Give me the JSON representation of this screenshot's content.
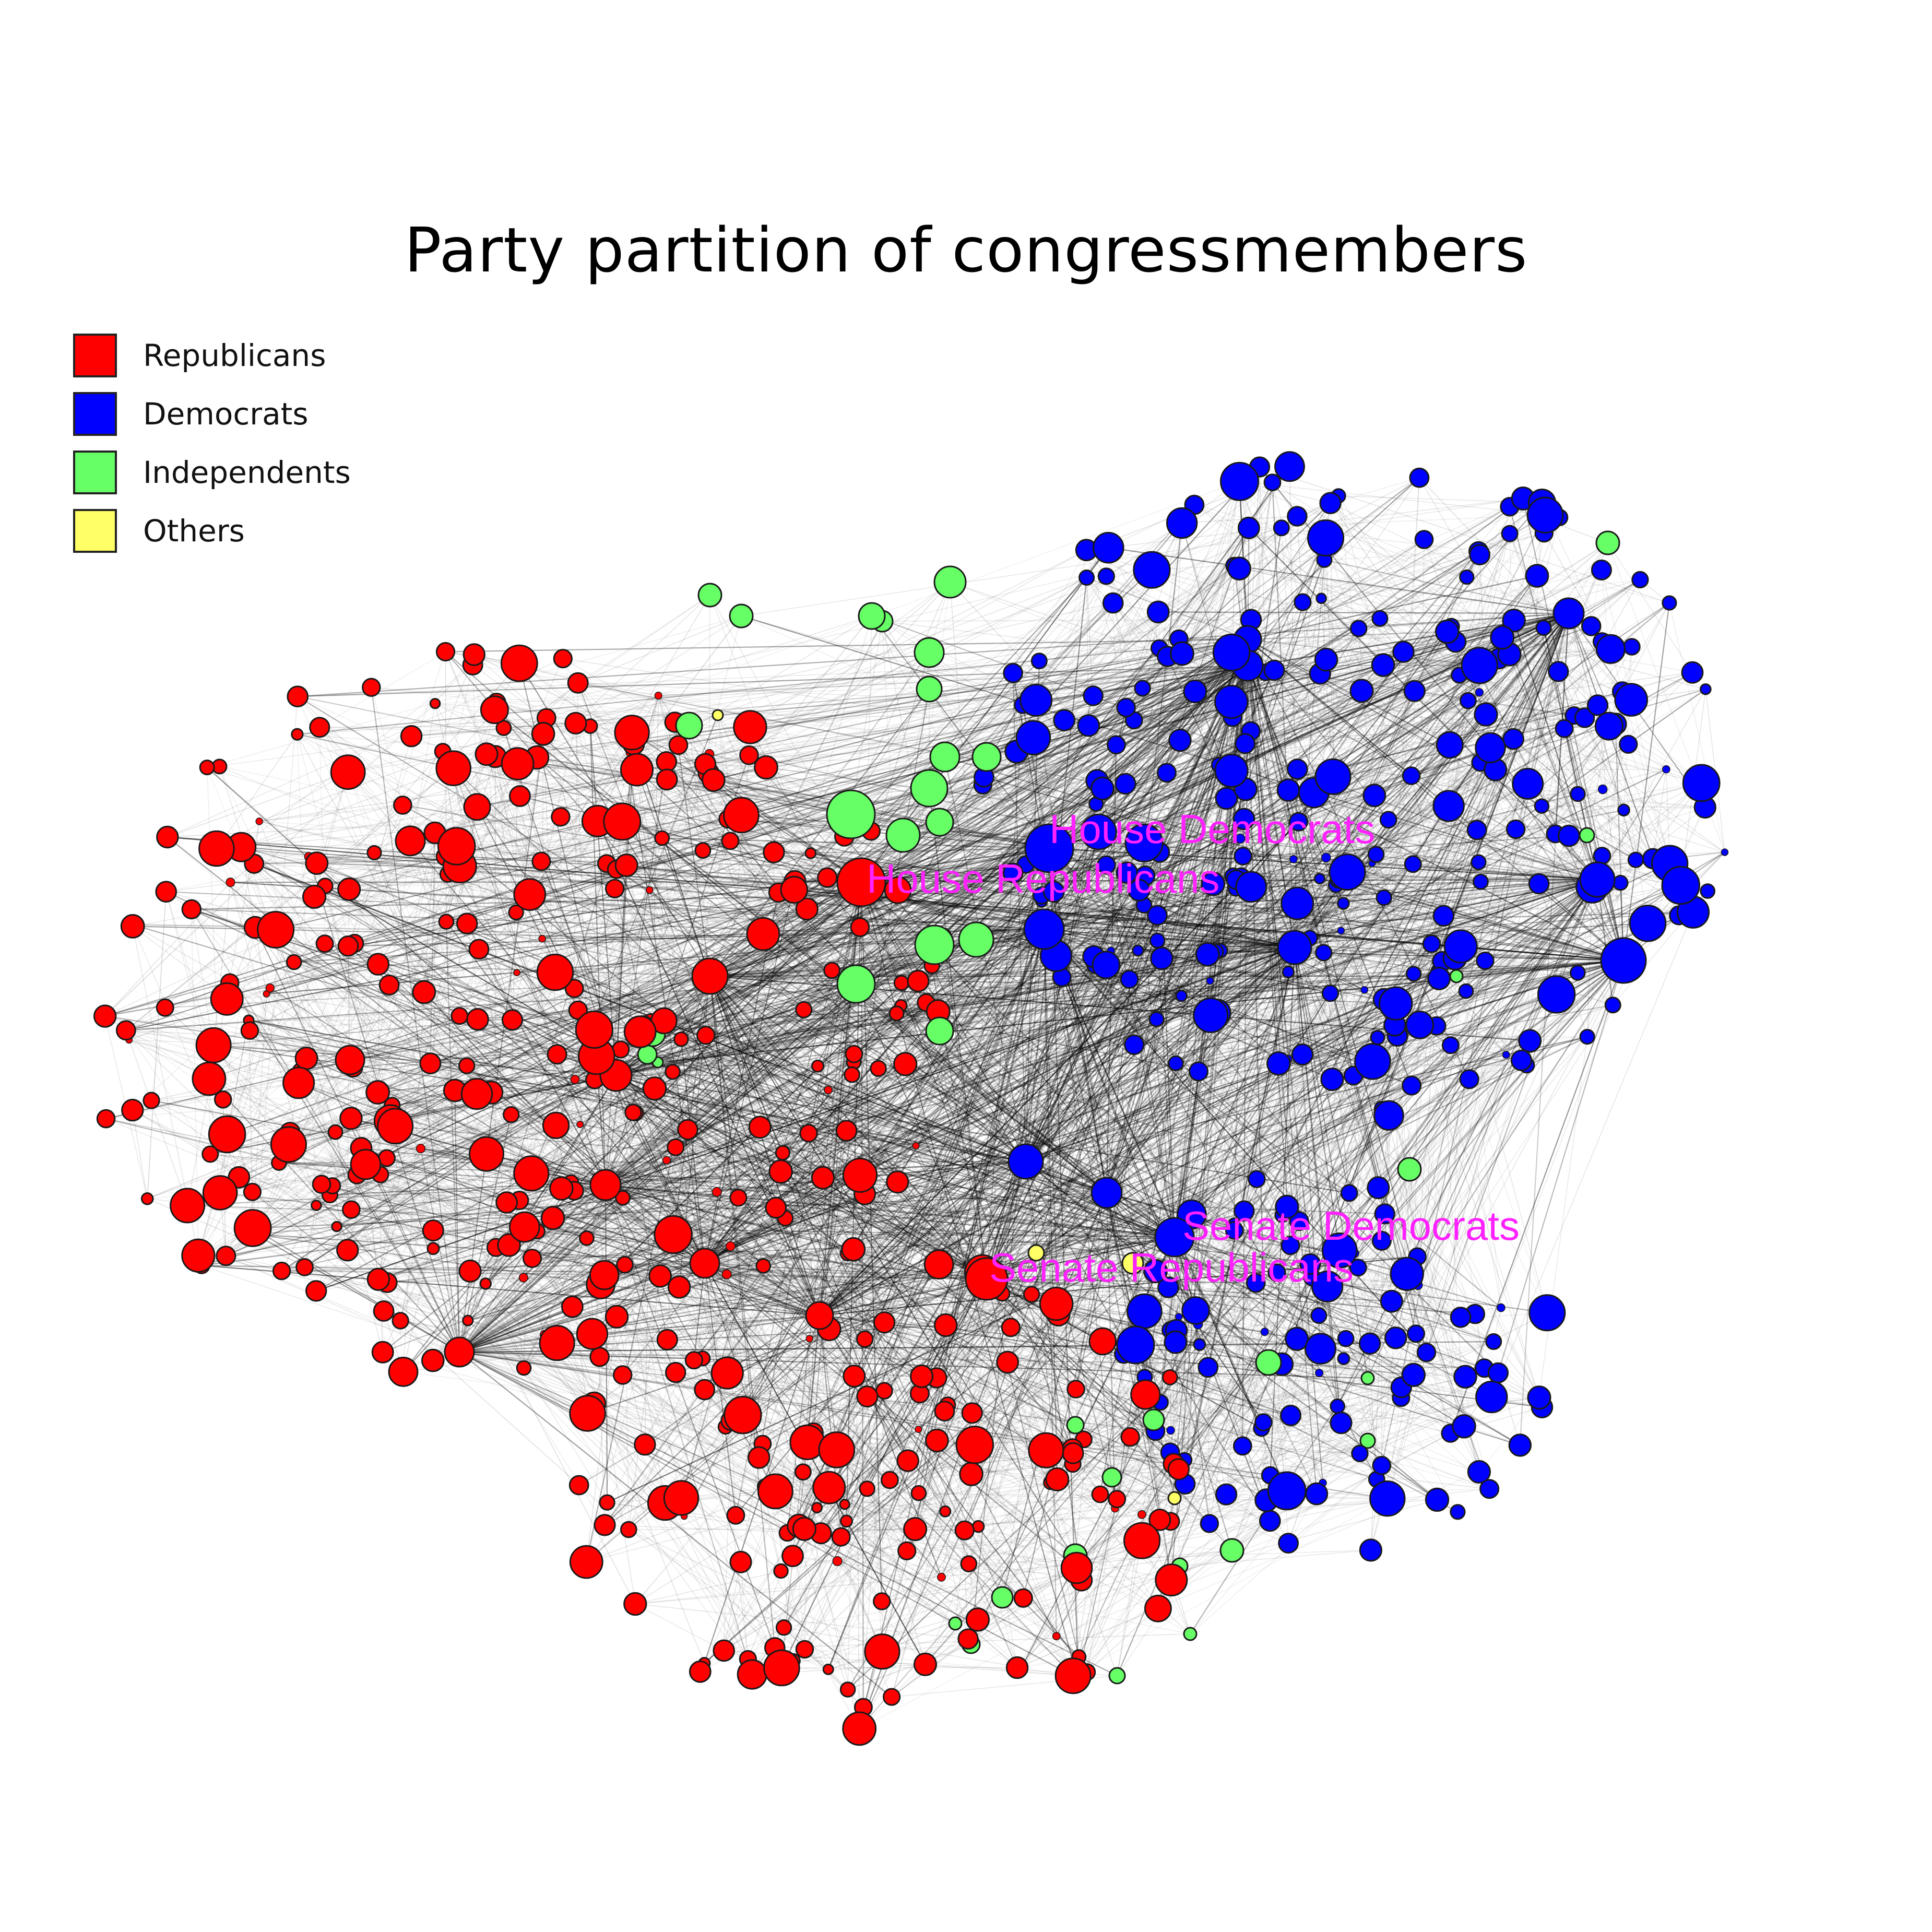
{
  "title": "Party partition of congressmembers",
  "legend": [
    {
      "label": "Republicans",
      "color": "#ff0000"
    },
    {
      "label": "Democrats",
      "color": "#0000ff"
    },
    {
      "label": "Independents",
      "color": "#66ff66"
    },
    {
      "label": "Others",
      "color": "#ffff66"
    }
  ],
  "group_labels": {
    "house_democrats": "House Democrats",
    "house_republicans": "House Republicans",
    "senate_democrats": "Senate Democrats",
    "senate_republicans": "Senate Republicans"
  },
  "colors": {
    "edge": "#000000",
    "node_stroke": "#1a1a1a",
    "label": "#ff22ff"
  }
}
